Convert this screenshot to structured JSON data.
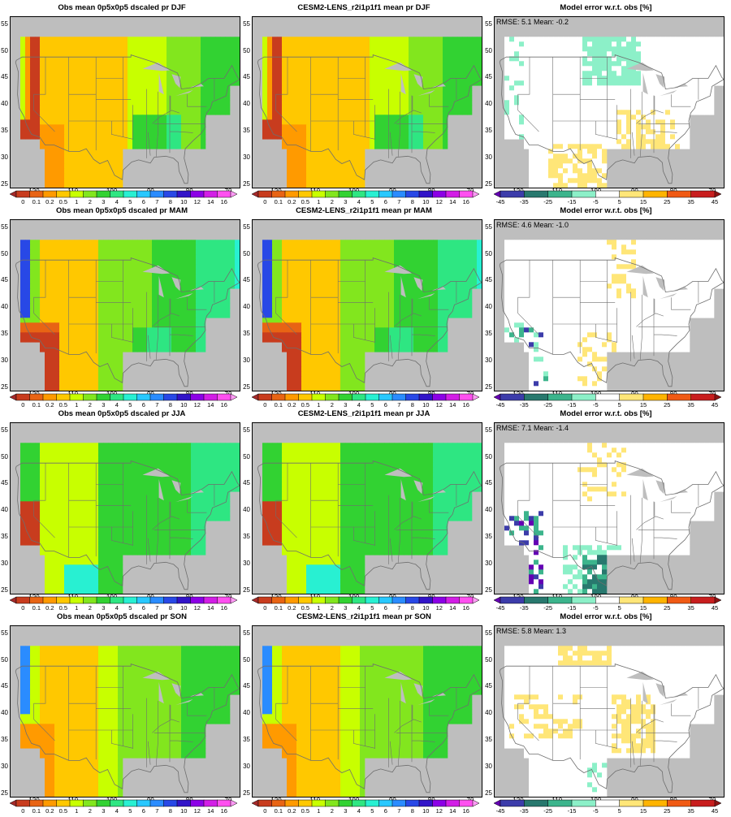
{
  "panels": [
    [
      {
        "title": "Obs mean 0p5x0p5 dscaled pr DJF",
        "kind": "pr",
        "season": "DJF"
      },
      {
        "title": "CESM2-LENS_r2i1p1f1 mean pr DJF",
        "kind": "pr",
        "season": "DJF"
      },
      {
        "title": "Model error w.r.t. obs [%]",
        "kind": "err",
        "stats": "RMSE: 5.1   Mean: -0.2"
      }
    ],
    [
      {
        "title": "Obs mean 0p5x0p5 dscaled pr MAM",
        "kind": "pr",
        "season": "MAM"
      },
      {
        "title": "CESM2-LENS_r2i1p1f1 mean pr MAM",
        "kind": "pr",
        "season": "MAM"
      },
      {
        "title": "Model error w.r.t. obs [%]",
        "kind": "err",
        "stats": "RMSE: 4.6   Mean: -1.0"
      }
    ],
    [
      {
        "title": "Obs mean 0p5x0p5 dscaled pr JJA",
        "kind": "pr",
        "season": "JJA"
      },
      {
        "title": "CESM2-LENS_r2i1p1f1 mean pr JJA",
        "kind": "pr",
        "season": "JJA"
      },
      {
        "title": "Model error w.r.t. obs [%]",
        "kind": "err",
        "stats": "RMSE: 7.1   Mean: -1.4"
      }
    ],
    [
      {
        "title": "Obs mean 0p5x0p5 dscaled pr SON",
        "kind": "pr",
        "season": "SON"
      },
      {
        "title": "CESM2-LENS_r2i1p1f1 mean pr SON",
        "kind": "pr",
        "season": "SON"
      },
      {
        "title": "Model error w.r.t. obs [%]",
        "kind": "err",
        "stats": "RMSE: 5.8   Mean: 1.3"
      }
    ]
  ],
  "axes": {
    "lat_ticks": [
      "25",
      "30",
      "35",
      "40",
      "45",
      "50",
      "55"
    ],
    "lon_ticks": [
      "-120",
      "-110",
      "-100",
      "-90",
      "-80",
      "-70"
    ]
  },
  "pr_colorbar": {
    "labels": [
      "0",
      "0.1",
      "0.2",
      "0.5",
      "1",
      "2",
      "3",
      "4",
      "5",
      "6",
      "7",
      "8",
      "10",
      "12",
      "14",
      "16"
    ],
    "colors": [
      "#a52a2a",
      "#c83c1e",
      "#e86414",
      "#ff9a00",
      "#ffc800",
      "#c8ff00",
      "#82e61e",
      "#32d232",
      "#2ee682",
      "#28f0d2",
      "#28c8ff",
      "#2a8cff",
      "#2848e6",
      "#3214c8",
      "#8c00e6",
      "#d21ee6",
      "#ff50f0",
      "#ff9bf5"
    ]
  },
  "err_colorbar": {
    "labels": [
      "-45",
      "-35",
      "-25",
      "-15",
      "-5",
      "5",
      "15",
      "25",
      "35",
      "45"
    ],
    "colors": [
      "#6400b4",
      "#3c3caa",
      "#28786e",
      "#3cb48c",
      "#8cf0c8",
      "#ffffff",
      "#ffe678",
      "#ffb400",
      "#f05a14",
      "#c81e1e",
      "#8c1414"
    ]
  },
  "map_colors": {
    "land_mask": "#bebebe",
    "ocean": "#bebebe",
    "border": "#6e6e6e",
    "err_bg": "#f5fffa"
  }
}
